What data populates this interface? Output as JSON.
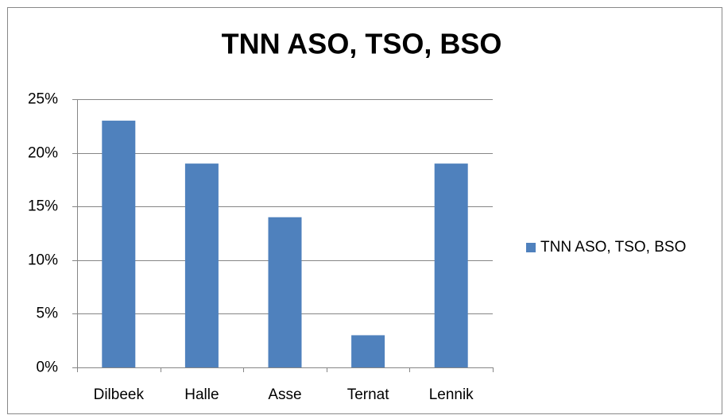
{
  "chart_data": {
    "type": "bar",
    "title": "TNN ASO, TSO, BSO",
    "categories": [
      "Dilbeek",
      "Halle",
      "Asse",
      "Ternat",
      "Lennik"
    ],
    "series": [
      {
        "name": "TNN ASO, TSO, BSO",
        "color": "#4f81bd",
        "values": [
          23,
          19,
          14,
          3,
          19
        ]
      }
    ],
    "ylim": [
      0,
      25
    ],
    "yticks": [
      {
        "value": 0,
        "label": "0%"
      },
      {
        "value": 5,
        "label": "5%"
      },
      {
        "value": 10,
        "label": "10%"
      },
      {
        "value": 15,
        "label": "15%"
      },
      {
        "value": 20,
        "label": "20%"
      },
      {
        "value": 25,
        "label": "25%"
      }
    ],
    "grid": true,
    "legend": "right"
  }
}
